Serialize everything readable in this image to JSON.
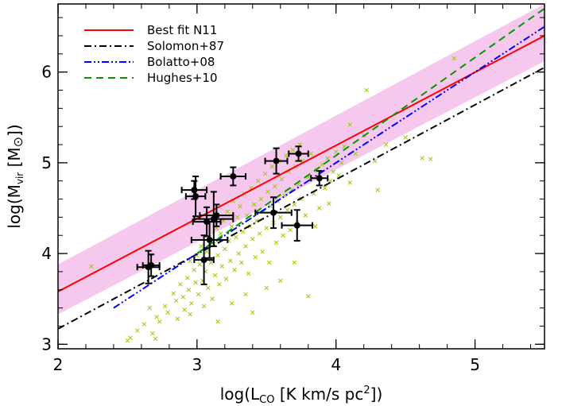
{
  "chart_data": {
    "type": "scatter",
    "title": "",
    "xlabel": {
      "prefix": "log(L",
      "sub": "CO",
      "suffix": " [K km/s pc",
      "sup": "2",
      "close": "])"
    },
    "ylabel": {
      "prefix": "log(M",
      "sub": "vir",
      "middle": " [M",
      "sun": "⊙",
      "close": "])"
    },
    "xlim": [
      2,
      5.5
    ],
    "ylim": [
      2.95,
      6.75
    ],
    "xticks": [
      2,
      3,
      4,
      5
    ],
    "yticks": [
      3,
      4,
      5,
      6
    ],
    "grid": false,
    "legend_position": "top-left",
    "colors": {
      "band": "#f6c8ee",
      "best_fit": "#ff0000",
      "solomon": "#000000",
      "bolatto": "#0000ff",
      "hughes": "#009900",
      "lmc_points": "#99cc00",
      "n11_points": "#000000"
    },
    "band": {
      "x": [
        2,
        5.5
      ],
      "lower": [
        3.33,
        6.12
      ],
      "upper": [
        3.88,
        6.75
      ]
    },
    "lines": [
      {
        "name": "Best fit N11",
        "style": "solid",
        "color_key": "best_fit",
        "x": [
          2,
          5.5
        ],
        "y": [
          3.58,
          6.4
        ]
      },
      {
        "name": "Solomon+87",
        "style": "dash-dot",
        "color_key": "solomon",
        "x": [
          2,
          5.5
        ],
        "y": [
          3.17,
          6.05
        ]
      },
      {
        "name": "Bolatto+08",
        "style": "dash-dot-dot",
        "color_key": "bolatto",
        "x": [
          2.4,
          5.5
        ],
        "y": [
          3.4,
          6.5
        ]
      },
      {
        "name": "Hughes+10",
        "style": "dashed",
        "color_key": "hughes",
        "x": [
          3.0,
          5.5
        ],
        "y": [
          4.0,
          6.7
        ]
      }
    ],
    "n11_points": [
      {
        "x": 2.65,
        "y": 3.85,
        "xerr": 0.08,
        "yerr": 0.18
      },
      {
        "x": 2.67,
        "y": 3.87,
        "xerr": 0.06,
        "yerr": 0.12
      },
      {
        "x": 2.98,
        "y": 4.7,
        "xerr": 0.09,
        "yerr": 0.1
      },
      {
        "x": 2.99,
        "y": 4.63,
        "xerr": 0.07,
        "yerr": 0.22
      },
      {
        "x": 3.05,
        "y": 3.93,
        "xerr": 0.07,
        "yerr": 0.27
      },
      {
        "x": 3.07,
        "y": 4.35,
        "xerr": 0.1,
        "yerr": 0.16
      },
      {
        "x": 3.09,
        "y": 4.15,
        "xerr": 0.13,
        "yerr": 0.2
      },
      {
        "x": 3.12,
        "y": 4.38,
        "xerr": 0.14,
        "yerr": 0.3
      },
      {
        "x": 3.14,
        "y": 4.42,
        "xerr": 0.12,
        "yerr": 0.12
      },
      {
        "x": 3.26,
        "y": 4.85,
        "xerr": 0.09,
        "yerr": 0.1
      },
      {
        "x": 3.55,
        "y": 4.45,
        "xerr": 0.13,
        "yerr": 0.17
      },
      {
        "x": 3.57,
        "y": 5.02,
        "xerr": 0.08,
        "yerr": 0.14
      },
      {
        "x": 3.72,
        "y": 4.31,
        "xerr": 0.11,
        "yerr": 0.17
      },
      {
        "x": 3.73,
        "y": 5.1,
        "xerr": 0.07,
        "yerr": 0.08
      },
      {
        "x": 3.88,
        "y": 4.83,
        "xerr": 0.06,
        "yerr": 0.08
      }
    ],
    "lmc_points": [
      [
        2.24,
        3.86
      ],
      [
        2.5,
        3.04
      ],
      [
        2.52,
        3.07
      ],
      [
        2.57,
        3.15
      ],
      [
        2.62,
        3.22
      ],
      [
        2.66,
        3.4
      ],
      [
        2.68,
        3.12
      ],
      [
        2.71,
        3.3
      ],
      [
        2.73,
        3.25
      ],
      [
        2.77,
        3.42
      ],
      [
        2.79,
        3.35
      ],
      [
        2.83,
        3.56
      ],
      [
        2.85,
        3.48
      ],
      [
        2.86,
        3.28
      ],
      [
        2.88,
        3.66
      ],
      [
        2.9,
        3.52
      ],
      [
        2.91,
        3.38
      ],
      [
        2.93,
        3.73
      ],
      [
        2.94,
        3.6
      ],
      [
        2.95,
        3.92
      ],
      [
        2.96,
        3.45
      ],
      [
        2.98,
        3.82
      ],
      [
        2.99,
        3.68
      ],
      [
        3.0,
        3.98
      ],
      [
        3.01,
        3.55
      ],
      [
        3.02,
        3.88
      ],
      [
        3.03,
        4.08
      ],
      [
        3.04,
        3.7
      ],
      [
        3.05,
        3.42
      ],
      [
        3.06,
        3.8
      ],
      [
        3.07,
        4.02
      ],
      [
        3.08,
        3.62
      ],
      [
        3.09,
        4.18
      ],
      [
        3.1,
        3.9
      ],
      [
        3.11,
        3.5
      ],
      [
        3.12,
        4.1
      ],
      [
        3.13,
        3.76
      ],
      [
        3.14,
        4.28
      ],
      [
        3.15,
        3.98
      ],
      [
        3.16,
        3.66
      ],
      [
        3.17,
        4.22
      ],
      [
        3.18,
        3.86
      ],
      [
        3.19,
        4.36
      ],
      [
        3.2,
        4.05
      ],
      [
        3.21,
        3.72
      ],
      [
        3.22,
        4.46
      ],
      [
        3.23,
        4.14
      ],
      [
        3.24,
        3.92
      ],
      [
        3.25,
        4.3
      ],
      [
        3.26,
        4.58
      ],
      [
        3.27,
        3.82
      ],
      [
        3.28,
        4.18
      ],
      [
        3.29,
        4.4
      ],
      [
        3.3,
        4.0
      ],
      [
        3.31,
        4.52
      ],
      [
        3.32,
        3.9
      ],
      [
        3.33,
        4.24
      ],
      [
        3.34,
        4.66
      ],
      [
        3.35,
        4.08
      ],
      [
        3.36,
        4.42
      ],
      [
        3.37,
        3.78
      ],
      [
        3.38,
        4.3
      ],
      [
        3.39,
        4.72
      ],
      [
        3.4,
        4.16
      ],
      [
        3.41,
        4.54
      ],
      [
        3.42,
        3.96
      ],
      [
        3.43,
        4.36
      ],
      [
        3.44,
        4.8
      ],
      [
        3.45,
        4.22
      ],
      [
        3.46,
        4.6
      ],
      [
        3.47,
        4.02
      ],
      [
        3.48,
        4.46
      ],
      [
        3.49,
        4.88
      ],
      [
        3.5,
        4.28
      ],
      [
        3.51,
        4.68
      ],
      [
        3.52,
        3.9
      ],
      [
        3.53,
        4.52
      ],
      [
        3.54,
        4.96
      ],
      [
        3.55,
        4.34
      ],
      [
        3.56,
        4.74
      ],
      [
        3.57,
        4.12
      ],
      [
        3.58,
        4.58
      ],
      [
        3.59,
        5.02
      ],
      [
        3.6,
        4.4
      ],
      [
        3.61,
        4.82
      ],
      [
        3.62,
        4.2
      ],
      [
        3.63,
        4.64
      ],
      [
        3.64,
        5.08
      ],
      [
        3.65,
        4.48
      ],
      [
        3.66,
        4.9
      ],
      [
        3.67,
        4.26
      ],
      [
        3.68,
        4.7
      ],
      [
        3.69,
        5.14
      ],
      [
        3.7,
        4.54
      ],
      [
        3.71,
        4.96
      ],
      [
        3.72,
        4.34
      ],
      [
        3.73,
        4.76
      ],
      [
        3.74,
        5.2
      ],
      [
        3.75,
        4.6
      ],
      [
        3.76,
        5.02
      ],
      [
        3.78,
        4.42
      ],
      [
        3.8,
        4.84
      ],
      [
        3.82,
        5.1
      ],
      [
        3.84,
        4.66
      ],
      [
        3.86,
        4.92
      ],
      [
        3.88,
        4.5
      ],
      [
        3.9,
        4.98
      ],
      [
        3.92,
        4.72
      ],
      [
        3.94,
        5.05
      ],
      [
        3.96,
        4.8
      ],
      [
        3.98,
        4.9
      ],
      [
        4.0,
        5.12
      ],
      [
        4.02,
        4.86
      ],
      [
        4.04,
        5.0
      ],
      [
        4.06,
        5.18
      ],
      [
        4.1,
        4.78
      ],
      [
        4.14,
        5.1
      ],
      [
        4.2,
        5.3
      ],
      [
        4.28,
        5.02
      ],
      [
        4.36,
        5.2
      ],
      [
        4.5,
        5.28
      ],
      [
        4.62,
        5.05
      ],
      [
        4.68,
        5.04
      ],
      [
        4.22,
        5.8
      ],
      [
        4.85,
        6.15
      ],
      [
        3.8,
        3.53
      ],
      [
        2.95,
        3.33
      ],
      [
        3.35,
        3.55
      ],
      [
        3.5,
        3.62
      ],
      [
        3.25,
        3.45
      ],
      [
        2.7,
        3.06
      ],
      [
        3.6,
        3.7
      ],
      [
        3.4,
        3.35
      ],
      [
        3.15,
        3.25
      ],
      [
        3.95,
        4.55
      ],
      [
        4.1,
        5.42
      ],
      [
        3.85,
        4.3
      ],
      [
        3.7,
        3.9
      ],
      [
        4.3,
        4.7
      ]
    ],
    "legend": [
      {
        "label": "Best fit N11",
        "style": "solid",
        "color_key": "best_fit"
      },
      {
        "label": "Solomon+87",
        "style": "dash-dot",
        "color_key": "solomon"
      },
      {
        "label": "Bolatto+08",
        "style": "dash-dot-dot",
        "color_key": "bolatto"
      },
      {
        "label": "Hughes+10",
        "style": "dashed",
        "color_key": "hughes"
      }
    ]
  }
}
